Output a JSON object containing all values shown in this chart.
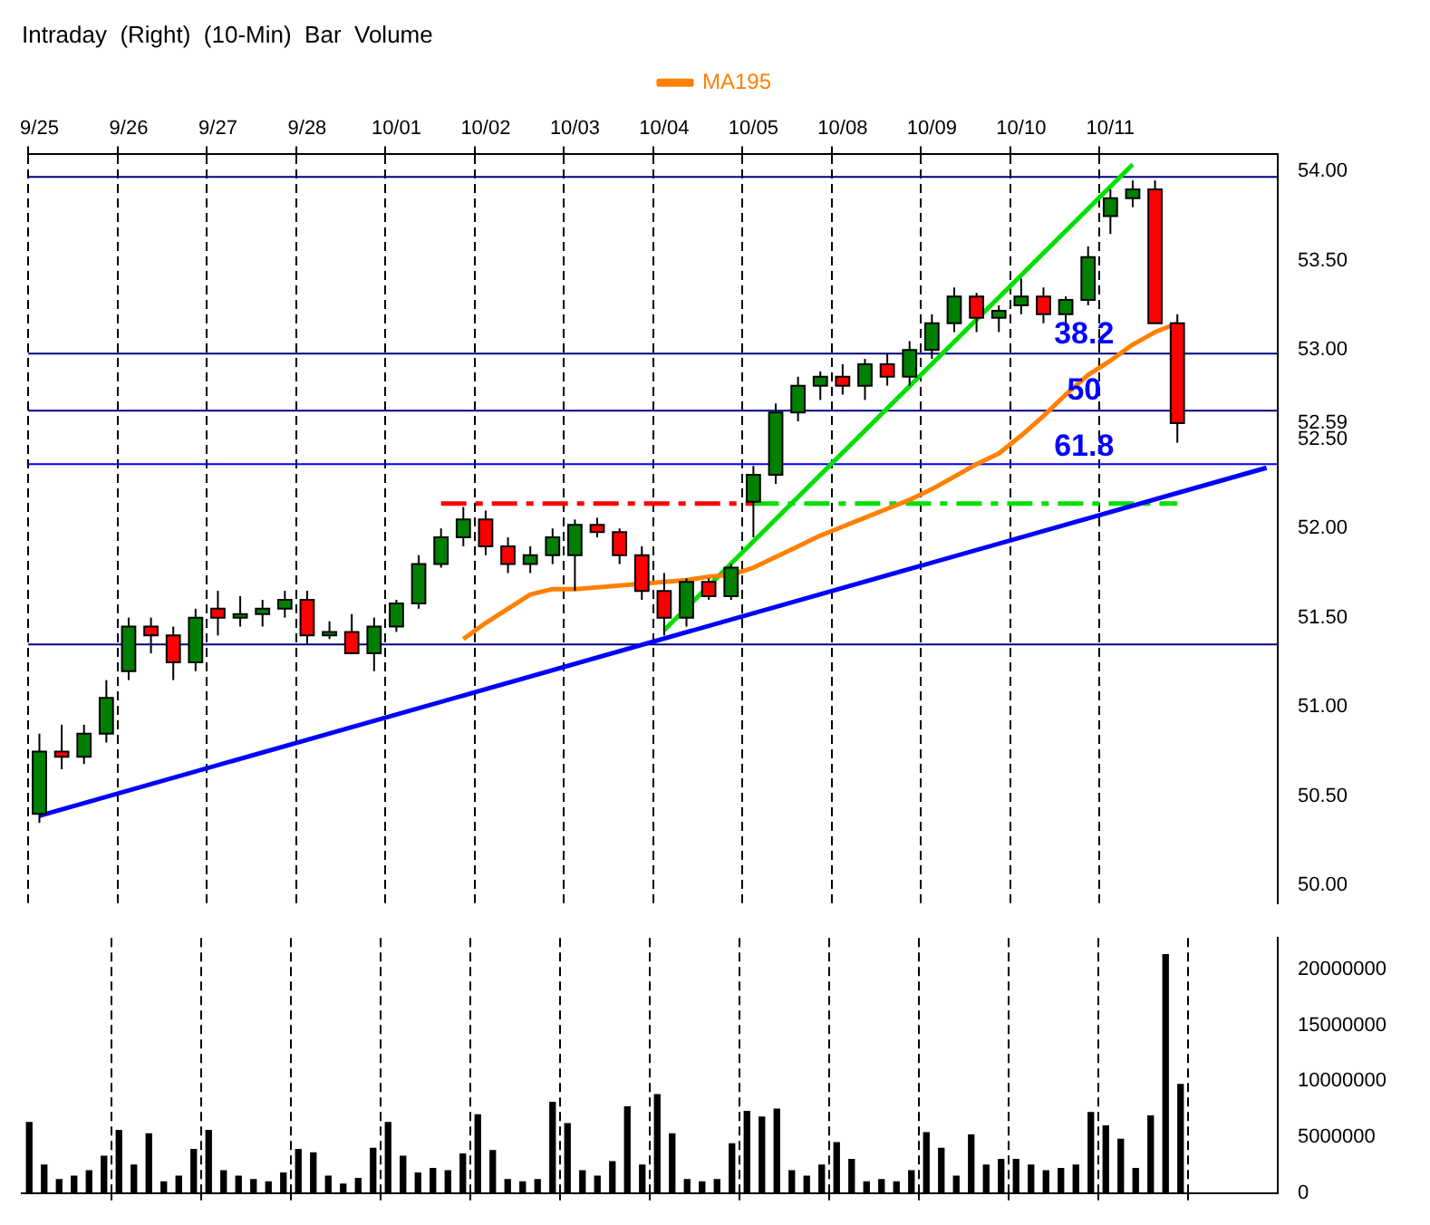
{
  "chart_data": [
    {
      "type": "candlestick",
      "title": "Intraday  (Right)  (10-Min)  Bar  Volume",
      "legend": "top",
      "grid": "x",
      "categories": [
        "9/25",
        null,
        null,
        null,
        "9/26",
        null,
        null,
        null,
        "9/27",
        null,
        null,
        null,
        "9/28",
        null,
        null,
        null,
        "10/01",
        null,
        null,
        null,
        "10/02",
        null,
        null,
        null,
        "10/03",
        null,
        null,
        null,
        "10/04",
        null,
        null,
        null,
        "10/05",
        null,
        null,
        null,
        "10/08",
        null,
        null,
        null,
        "10/09",
        null,
        null,
        null,
        "10/10",
        null,
        null,
        null,
        "10/11",
        null,
        null,
        null,
        null,
        null,
        null,
        null
      ],
      "ylim": [
        49.9,
        54.1
      ],
      "yticks": [
        {
          "value": 50,
          "label": "50.00"
        },
        {
          "value": 50.5,
          "label": "50.50"
        },
        {
          "value": 51,
          "label": "51.00"
        },
        {
          "value": 51.5,
          "label": "51.50"
        },
        {
          "value": 52,
          "label": "52.00"
        },
        {
          "value": 52.5,
          "label": "52.50"
        },
        {
          "value": 52.59,
          "label": "52.59"
        },
        {
          "value": 53,
          "label": "53.00"
        },
        {
          "value": 53.5,
          "label": "53.50"
        },
        {
          "value": 54,
          "label": "54.00"
        }
      ],
      "ref_lines": [
        {
          "axis": "y",
          "value": 53.97,
          "color": "#000080"
        },
        {
          "axis": "y",
          "value": 52.98,
          "color": "#000080"
        },
        {
          "axis": "y",
          "value": 52.66,
          "color": "#000080"
        },
        {
          "axis": "y",
          "value": 52.36,
          "color": "#0000ff"
        },
        {
          "axis": "y",
          "value": 51.35,
          "color": "#000080"
        }
      ],
      "annotations": [
        "38.2",
        "50",
        "61.8"
      ],
      "series": [
        {
          "type": "candlestick",
          "ohlc": [
            [
              50.4,
              50.85,
              50.35,
              50.75
            ],
            [
              50.75,
              50.9,
              50.65,
              50.72
            ],
            [
              50.72,
              50.9,
              50.68,
              50.85
            ],
            [
              50.85,
              51.15,
              50.8,
              51.05
            ],
            [
              51.2,
              51.5,
              51.15,
              51.45
            ],
            [
              51.45,
              51.5,
              51.3,
              51.4
            ],
            [
              51.4,
              51.45,
              51.15,
              51.25
            ],
            [
              51.25,
              51.55,
              51.2,
              51.5
            ],
            [
              51.55,
              51.65,
              51.4,
              51.5
            ],
            [
              51.5,
              51.62,
              51.45,
              51.52
            ],
            [
              51.52,
              51.6,
              51.45,
              51.55
            ],
            [
              51.55,
              51.65,
              51.5,
              51.6
            ],
            [
              51.6,
              51.65,
              51.35,
              51.4
            ],
            [
              51.4,
              51.48,
              51.38,
              51.42
            ],
            [
              51.42,
              51.52,
              51.3,
              51.3
            ],
            [
              51.3,
              51.5,
              51.2,
              51.45
            ],
            [
              51.45,
              51.6,
              51.42,
              51.58
            ],
            [
              51.58,
              51.85,
              51.55,
              51.8
            ],
            [
              51.8,
              52,
              51.78,
              51.95
            ],
            [
              51.95,
              52.12,
              51.9,
              52.05
            ],
            [
              52.05,
              52.1,
              51.85,
              51.9
            ],
            [
              51.9,
              51.95,
              51.75,
              51.8
            ],
            [
              51.8,
              51.9,
              51.75,
              51.85
            ],
            [
              51.85,
              52,
              51.8,
              51.95
            ],
            [
              51.85,
              52.05,
              51.65,
              52.02
            ],
            [
              52.02,
              52.06,
              51.95,
              51.98
            ],
            [
              51.98,
              52,
              51.8,
              51.85
            ],
            [
              51.85,
              51.9,
              51.6,
              51.65
            ],
            [
              51.65,
              51.75,
              51.4,
              51.5
            ],
            [
              51.5,
              51.72,
              51.45,
              51.7
            ],
            [
              51.7,
              51.72,
              51.6,
              51.62
            ],
            [
              51.62,
              51.8,
              51.6,
              51.78
            ],
            [
              52.15,
              52.35,
              51.95,
              52.3
            ],
            [
              52.3,
              52.7,
              52.25,
              52.65
            ],
            [
              52.65,
              52.85,
              52.6,
              52.8
            ],
            [
              52.8,
              52.88,
              52.72,
              52.85
            ],
            [
              52.85,
              52.92,
              52.75,
              52.8
            ],
            [
              52.8,
              52.95,
              52.72,
              52.92
            ],
            [
              52.92,
              52.98,
              52.8,
              52.85
            ],
            [
              52.85,
              53.05,
              52.8,
              53
            ],
            [
              53,
              53.2,
              52.95,
              53.15
            ],
            [
              53.15,
              53.35,
              53.1,
              53.3
            ],
            [
              53.3,
              53.32,
              53.1,
              53.18
            ],
            [
              53.18,
              53.25,
              53.1,
              53.22
            ],
            [
              53.25,
              53.4,
              53.2,
              53.3
            ],
            [
              53.3,
              53.35,
              53.15,
              53.2
            ],
            [
              53.2,
              53.3,
              53.12,
              53.28
            ],
            [
              53.28,
              53.58,
              53.25,
              53.52
            ],
            [
              53.75,
              53.9,
              53.65,
              53.85
            ],
            [
              53.85,
              53.95,
              53.8,
              53.9
            ],
            [
              53.9,
              53.95,
              53.15,
              53.15
            ],
            [
              53.15,
              53.2,
              52.48,
              52.59
            ],
            null,
            null,
            null,
            null
          ]
        },
        {
          "type": "line",
          "name": "MA195",
          "color": "#ff8000",
          "values": [
            null,
            null,
            null,
            null,
            null,
            null,
            null,
            null,
            null,
            null,
            null,
            null,
            null,
            null,
            null,
            null,
            null,
            null,
            null,
            51.38,
            51.47,
            51.55,
            51.63,
            51.66,
            51.66,
            51.67,
            51.68,
            null,
            51.7,
            51.71,
            51.73,
            51.74,
            51.78,
            51.84,
            51.9,
            51.96,
            52.01,
            52.06,
            52.11,
            52.16,
            52.22,
            52.29,
            52.36,
            52.42,
            52.52,
            52.63,
            52.75,
            52.86,
            52.94,
            53.03,
            53.1,
            53.15,
            null,
            null,
            null,
            null
          ]
        },
        {
          "type": "line",
          "color": "#0000ff",
          "values": [
            50.39,
            null,
            null,
            null,
            null,
            null,
            null,
            null,
            null,
            null,
            null,
            null,
            null,
            null,
            null,
            null,
            null,
            null,
            null,
            null,
            null,
            null,
            null,
            null,
            null,
            null,
            null,
            null,
            null,
            null,
            null,
            null,
            null,
            null,
            null,
            null,
            null,
            null,
            null,
            null,
            null,
            null,
            null,
            null,
            null,
            null,
            null,
            null,
            null,
            null,
            null,
            null,
            null,
            null,
            null,
            52.34
          ]
        },
        {
          "type": "line",
          "color": "#00e000",
          "values": [
            null,
            null,
            null,
            null,
            null,
            null,
            null,
            null,
            null,
            null,
            null,
            null,
            null,
            null,
            null,
            null,
            null,
            null,
            null,
            null,
            null,
            null,
            null,
            null,
            null,
            null,
            null,
            null,
            51.43,
            null,
            null,
            null,
            null,
            null,
            null,
            null,
            null,
            null,
            null,
            null,
            null,
            null,
            null,
            null,
            null,
            null,
            null,
            null,
            null,
            54.04,
            null,
            null,
            null,
            null,
            null,
            null
          ]
        },
        {
          "type": "line",
          "color": "#ff0000",
          "line_style": "dashed",
          "values": [
            null,
            null,
            null,
            null,
            null,
            null,
            null,
            null,
            null,
            null,
            null,
            null,
            null,
            null,
            null,
            null,
            null,
            null,
            52.14,
            null,
            null,
            null,
            null,
            null,
            null,
            null,
            null,
            null,
            null,
            null,
            null,
            null,
            52.14,
            null,
            null,
            null,
            null,
            null,
            null,
            null,
            null,
            null,
            null,
            null,
            null,
            null,
            null,
            null,
            null,
            null,
            null,
            null,
            null,
            null,
            null,
            null
          ]
        },
        {
          "type": "line",
          "color": "#00e000",
          "line_style": "dashed",
          "values": [
            null,
            null,
            null,
            null,
            null,
            null,
            null,
            null,
            null,
            null,
            null,
            null,
            null,
            null,
            null,
            null,
            null,
            null,
            null,
            null,
            null,
            null,
            null,
            null,
            null,
            null,
            null,
            null,
            null,
            null,
            null,
            null,
            52.14,
            null,
            null,
            null,
            null,
            null,
            null,
            null,
            null,
            null,
            null,
            null,
            null,
            null,
            null,
            null,
            null,
            null,
            null,
            52.14,
            null,
            null,
            null,
            null
          ]
        }
      ]
    },
    {
      "type": "bar",
      "grid": "x",
      "tick_labels": "y",
      "color": "#000000",
      "ylim": [
        0,
        22800000
      ],
      "yticks": [
        0,
        5000000,
        10000000,
        15000000,
        20000000
      ],
      "categories": [
        null,
        null,
        null,
        null,
        null,
        null,
        null,
        null,
        null,
        null,
        null,
        null,
        null,
        null,
        null,
        null,
        null,
        null,
        null,
        null,
        null,
        null,
        null,
        null,
        null,
        null,
        null,
        null,
        null,
        null,
        null,
        null,
        null,
        null,
        null,
        null,
        null,
        null,
        null,
        null,
        null,
        null,
        null,
        null,
        null,
        null,
        null,
        null,
        null,
        null,
        null,
        null,
        null,
        null,
        null,
        null,
        null,
        null,
        null,
        null,
        null,
        null,
        null,
        null,
        null,
        null,
        null,
        null,
        null,
        null,
        null,
        null,
        null,
        null,
        null,
        null,
        null,
        null,
        null,
        null,
        null,
        null,
        null,
        null
      ],
      "values": [
        6300000,
        2500000,
        1200000,
        1500000,
        2000000,
        3300000,
        5600000,
        2500000,
        5300000,
        1000000,
        1500000,
        3900000,
        5600000,
        2000000,
        1500000,
        1200000,
        1000000,
        1800000,
        3900000,
        3600000,
        1500000,
        800000,
        1300000,
        4000000,
        6300000,
        3300000,
        1800000,
        2200000,
        2000000,
        3500000,
        7000000,
        3800000,
        1200000,
        1000000,
        1200000,
        8100000,
        6200000,
        2000000,
        1500000,
        2800000,
        7700000,
        2500000,
        8800000,
        5300000,
        1200000,
        1000000,
        1200000,
        4400000,
        7300000,
        6800000,
        7500000,
        2000000,
        1500000,
        2500000,
        4500000,
        3000000,
        1000000,
        1200000,
        1000000,
        2000000,
        5400000,
        4000000,
        1500000,
        5200000,
        2500000,
        3000000,
        3000000,
        2500000,
        2000000,
        2200000,
        2500000,
        7200000,
        6000000,
        4800000,
        2200000,
        6900000,
        21300000,
        9700000,
        null,
        null,
        null,
        null,
        null,
        null
      ]
    }
  ]
}
